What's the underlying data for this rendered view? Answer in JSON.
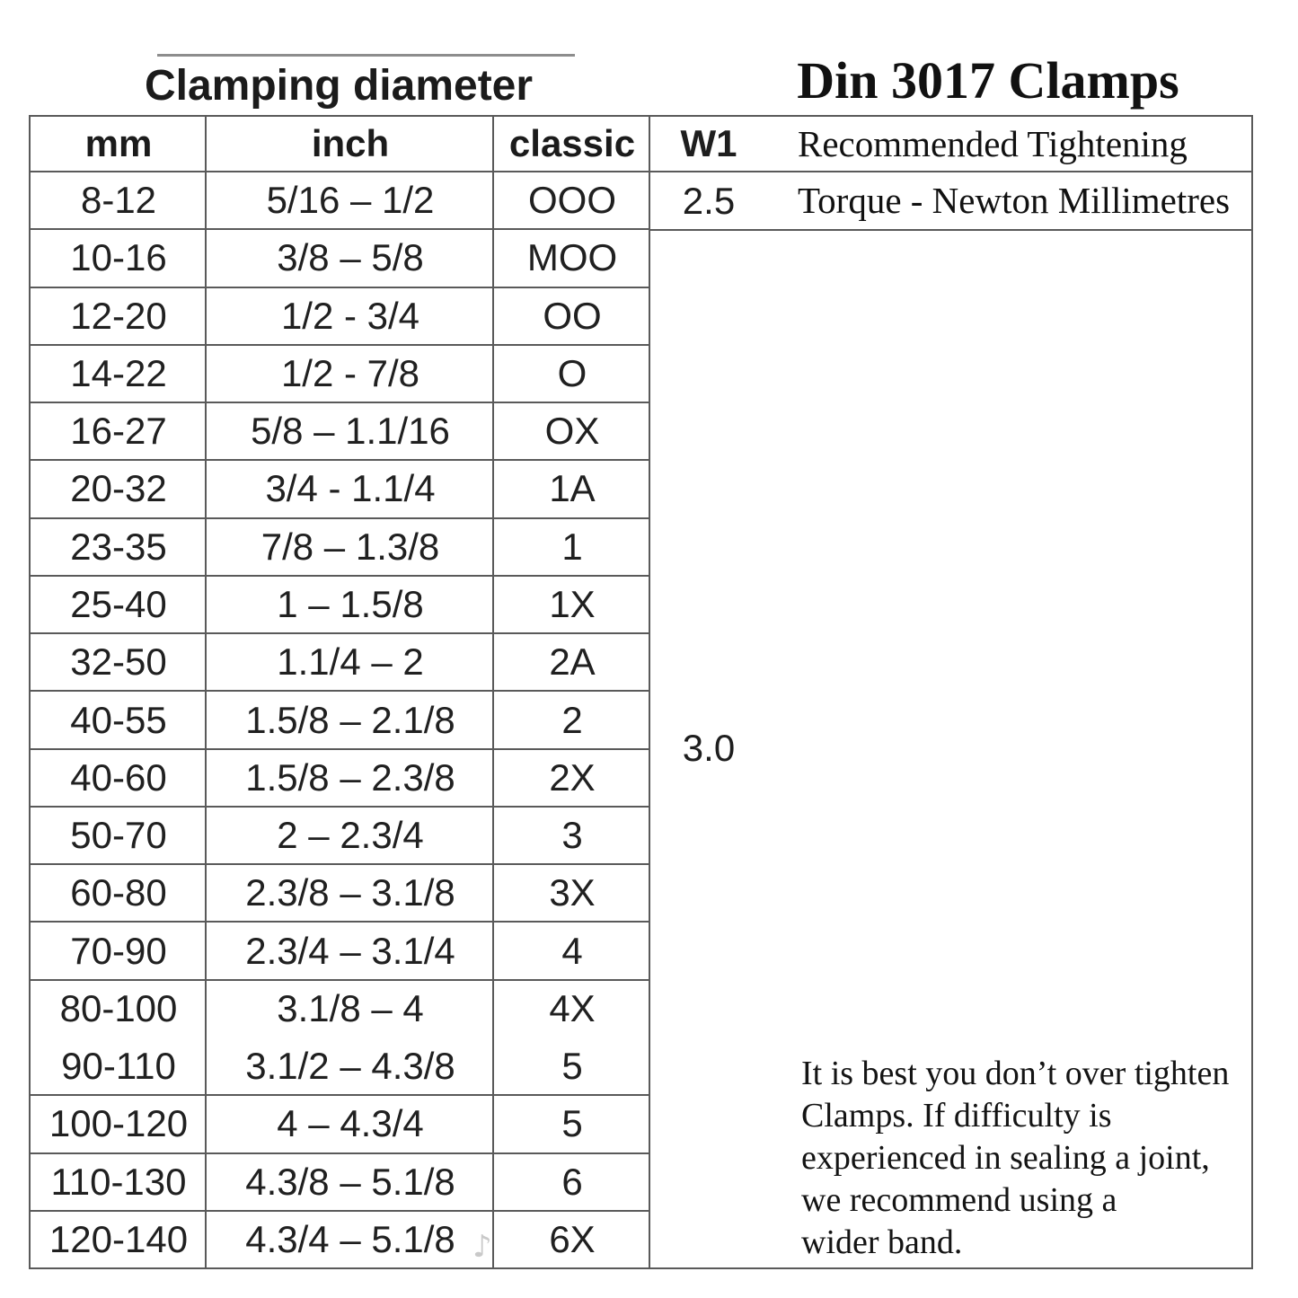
{
  "titles": {
    "left": "Clamping diameter",
    "right": "Din 3017 Clamps"
  },
  "table": {
    "headers": {
      "mm": "mm",
      "inch": "inch",
      "classic": "classic",
      "w1": "W1"
    },
    "tightening": {
      "line1": "Recommended Tightening",
      "line2": "Torque - Newton Millimetres"
    },
    "w1": {
      "row1": "2.5",
      "merged": "3.0"
    },
    "rows": [
      {
        "mm": "8-12",
        "inch": "5/16 – 1/2",
        "classic": "OOO"
      },
      {
        "mm": "10-16",
        "inch": "3/8 – 5/8",
        "classic": "MOO"
      },
      {
        "mm": "12-20",
        "inch": "1/2 - 3/4",
        "classic": "OO"
      },
      {
        "mm": "14-22",
        "inch": "1/2 - 7/8",
        "classic": "O"
      },
      {
        "mm": "16-27",
        "inch": "5/8 – 1.1/16",
        "classic": "OX"
      },
      {
        "mm": "20-32",
        "inch": "3/4 - 1.1/4",
        "classic": "1A"
      },
      {
        "mm": "23-35",
        "inch": "7/8 – 1.3/8",
        "classic": "1"
      },
      {
        "mm": "25-40",
        "inch": "1 – 1.5/8",
        "classic": "1X"
      },
      {
        "mm": "32-50",
        "inch": "1.1/4 – 2",
        "classic": "2A"
      },
      {
        "mm": "40-55",
        "inch": "1.5/8 – 2.1/8",
        "classic": "2"
      },
      {
        "mm": "40-60",
        "inch": "1.5/8 – 2.3/8",
        "classic": "2X"
      },
      {
        "mm": "50-70",
        "inch": "2 – 2.3/4",
        "classic": "3"
      },
      {
        "mm": "60-80",
        "inch": "2.3/8 – 3.1/8",
        "classic": "3X"
      },
      {
        "mm": "70-90",
        "inch": "2.3/4 – 3.1/4",
        "classic": "4"
      },
      {
        "mm": "80-100",
        "inch": "3.1/8 – 4",
        "classic": "4X"
      },
      {
        "mm": "90-110",
        "inch": "3.1/2 – 4.3/8",
        "classic": "5"
      },
      {
        "mm": "100-120",
        "inch": "4 – 4.3/4",
        "classic": "5"
      },
      {
        "mm": "110-130",
        "inch": "4.3/8 – 5.1/8",
        "classic": "6"
      },
      {
        "mm": "120-140",
        "inch": "4.3/4 – 5.1/8",
        "classic": "6X"
      }
    ]
  },
  "note": {
    "lines": [
      "It is best you don’t over tighten",
      "Clamps. If difficulty is",
      "experienced in sealing a joint,",
      "we recommend using a",
      "wider band."
    ]
  },
  "artifact": {
    "glyph": "♪"
  }
}
